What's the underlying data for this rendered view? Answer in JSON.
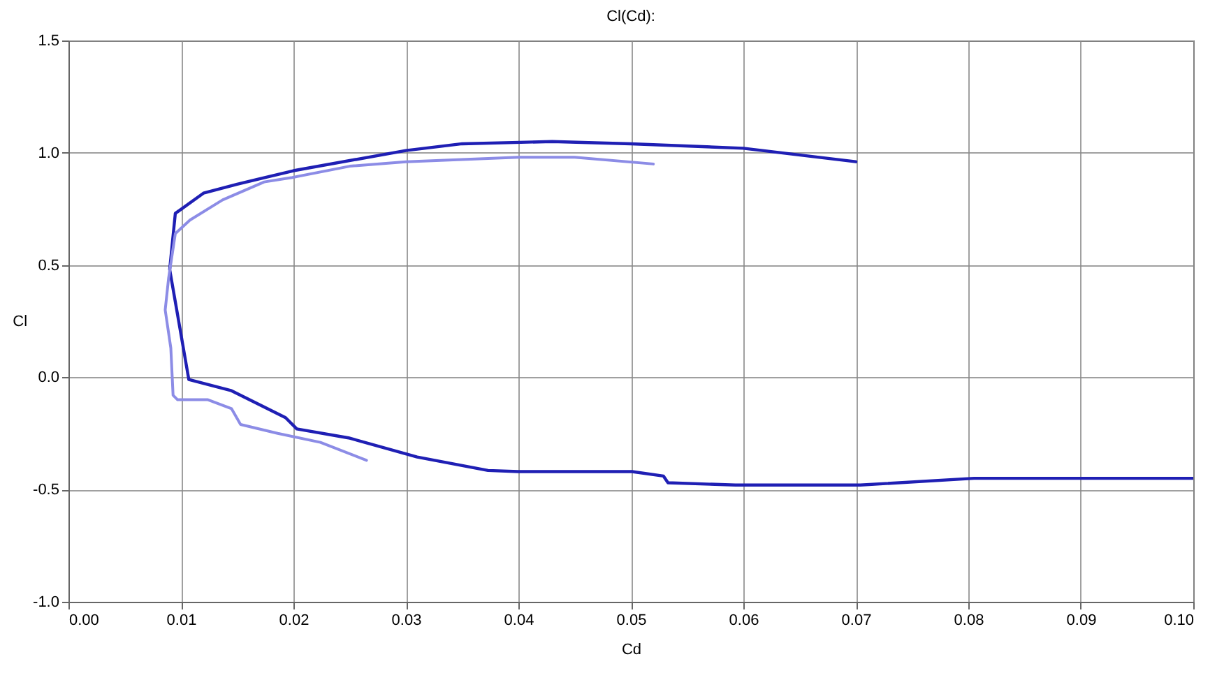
{
  "chart_data": {
    "type": "line",
    "title": "Cl(Cd):",
    "xlabel": "Cd",
    "ylabel": "Cl",
    "xlim": [
      0,
      0.1
    ],
    "ylim": [
      -1.0,
      1.5
    ],
    "xticks": [
      {
        "value": 0,
        "label": "0.00"
      },
      {
        "value": 0.01,
        "label": "0.01"
      },
      {
        "value": 0.02,
        "label": "0.02"
      },
      {
        "value": 0.03,
        "label": "0.03"
      },
      {
        "value": 0.04,
        "label": "0.04"
      },
      {
        "value": 0.05,
        "label": "0.05"
      },
      {
        "value": 0.06,
        "label": "0.06"
      },
      {
        "value": 0.07,
        "label": "0.07"
      },
      {
        "value": 0.08,
        "label": "0.08"
      },
      {
        "value": 0.09,
        "label": "0.09"
      },
      {
        "value": 0.1,
        "label": "0.10"
      }
    ],
    "yticks": [
      {
        "value": -1.0,
        "label": "-1.0"
      },
      {
        "value": -0.5,
        "label": "-0.5"
      },
      {
        "value": 0,
        "label": "0.0"
      },
      {
        "value": 0.5,
        "label": "0.5"
      },
      {
        "value": 1.0,
        "label": "1.0"
      },
      {
        "value": 1.5,
        "label": "1.5"
      }
    ],
    "grid": true,
    "marker": "none",
    "line_style": "solid",
    "series": [
      {
        "color": "#1f1fb4",
        "x": [
          0.07,
          0.06,
          0.05,
          0.043,
          0.035,
          0.03,
          0.02,
          0.015,
          0.012,
          0.0095,
          0.009,
          0.0107,
          0.0145,
          0.0193,
          0.0203,
          0.0249,
          0.031,
          0.0373,
          0.04,
          0.0501,
          0.0529,
          0.0533,
          0.0593,
          0.0704,
          0.0805,
          0.097,
          0.1
        ],
        "values": [
          0.96,
          1.02,
          1.04,
          1.05,
          1.04,
          1.01,
          0.92,
          0.86,
          0.82,
          0.73,
          0.48,
          -0.01,
          -0.06,
          -0.18,
          -0.23,
          -0.27,
          -0.355,
          -0.415,
          -0.42,
          -0.42,
          -0.44,
          -0.47,
          -0.48,
          -0.48,
          -0.45,
          -0.45,
          -0.45
        ]
      },
      {
        "color": "#8c8ce6",
        "x": [
          0.052,
          0.045,
          0.04,
          0.03,
          0.025,
          0.0199,
          0.0174,
          0.0137,
          0.0108,
          0.0095,
          0.0089,
          0.0086,
          0.0091,
          0.0093,
          0.0097,
          0.0124,
          0.0145,
          0.0153,
          0.0186,
          0.0224,
          0.0265
        ],
        "values": [
          0.95,
          0.98,
          0.98,
          0.96,
          0.94,
          0.89,
          0.87,
          0.79,
          0.7,
          0.64,
          0.44,
          0.3,
          0.13,
          -0.08,
          -0.1,
          -0.1,
          -0.14,
          -0.21,
          -0.25,
          -0.29,
          -0.37
        ]
      }
    ]
  }
}
